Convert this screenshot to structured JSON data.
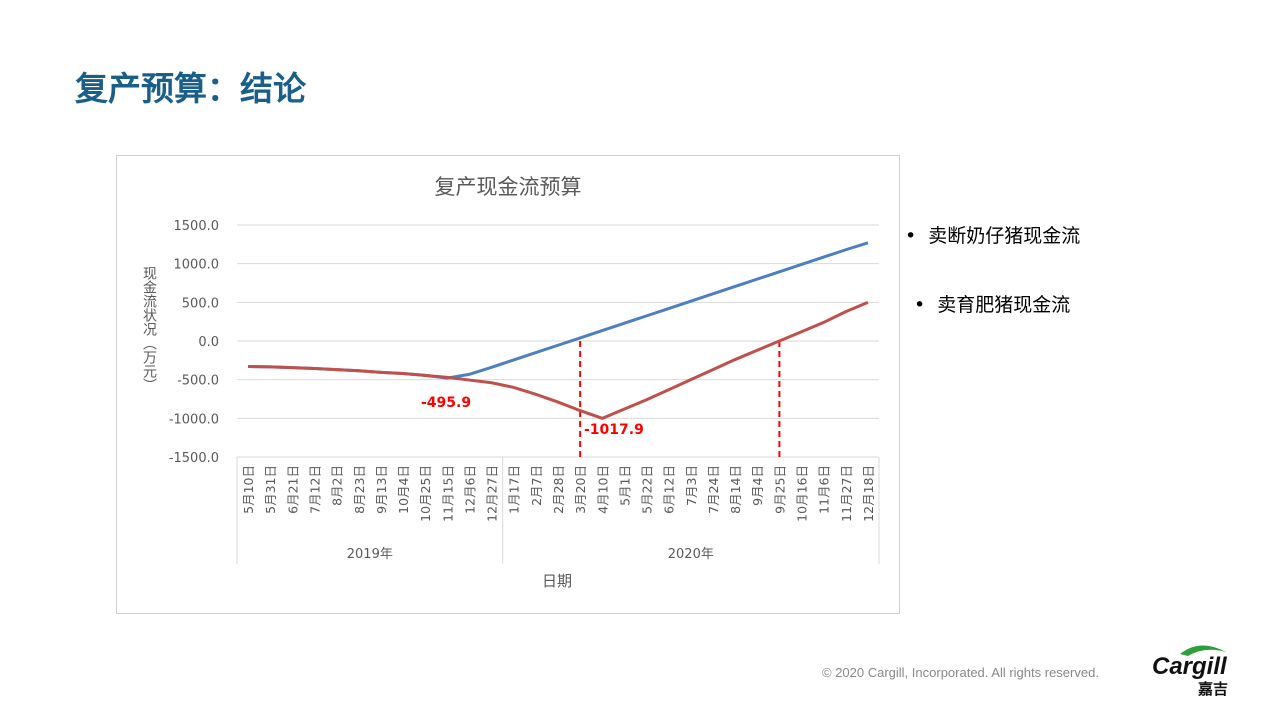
{
  "title": "复产预算：结论",
  "copyright": "© 2020 Cargill, Incorporated. All rights reserved.",
  "logo": {
    "text": "Cargill",
    "sub": "嘉吉"
  },
  "legend": [
    "卖断奶仔猪现金流",
    "卖育肥猪现金流"
  ],
  "chart_data": {
    "type": "line",
    "title": "复产现金流预算",
    "xlabel": "日期",
    "ylabel": "现金流状况（万元）",
    "ylim": [
      -1500,
      1500
    ],
    "yticks": [
      "1500.0",
      "1000.0",
      "500.0",
      "0.0",
      "-500.0",
      "-1000.0",
      "-1500.0"
    ],
    "categories": [
      "5月10日",
      "5月31日",
      "6月21日",
      "7月12日",
      "8月2日",
      "8月23日",
      "9月13日",
      "10月4日",
      "10月25日",
      "11月15日",
      "12月6日",
      "12月27日",
      "1月17日",
      "2月7日",
      "2月28日",
      "3月20日",
      "4月10日",
      "5月1日",
      "5月22日",
      "6月12日",
      "7月3日",
      "7月24日",
      "8月14日",
      "9月4日",
      "9月25日",
      "10月16日",
      "11月6日",
      "11月27日",
      "12月18日"
    ],
    "groups": [
      {
        "label": "2019年",
        "count": 12
      },
      {
        "label": "2020年",
        "count": 17
      }
    ],
    "series": [
      {
        "name": "卖断奶仔猪现金流",
        "color": "#4f7fbf",
        "values": [
          -330,
          -335,
          -345,
          -355,
          -370,
          -385,
          -405,
          -420,
          -445,
          -480,
          -430,
          -340,
          -245,
          -150,
          -55,
          40,
          135,
          230,
          325,
          420,
          515,
          610,
          705,
          800,
          895,
          990,
          1085,
          1180,
          1270
        ]
      },
      {
        "name": "卖育肥猪现金流",
        "color": "#c0504d",
        "values": [
          -330,
          -335,
          -345,
          -355,
          -370,
          -385,
          -405,
          -420,
          -445,
          -470,
          -505,
          -540,
          -600,
          -690,
          -790,
          -900,
          -1000,
          -880,
          -760,
          -630,
          -500,
          -370,
          -240,
          -120,
          0,
          120,
          240,
          380,
          500
        ]
      }
    ],
    "annotations": [
      {
        "text": "-495.9",
        "value": -495.9
      },
      {
        "text": "-1017.9",
        "value": -1017.9
      }
    ]
  }
}
